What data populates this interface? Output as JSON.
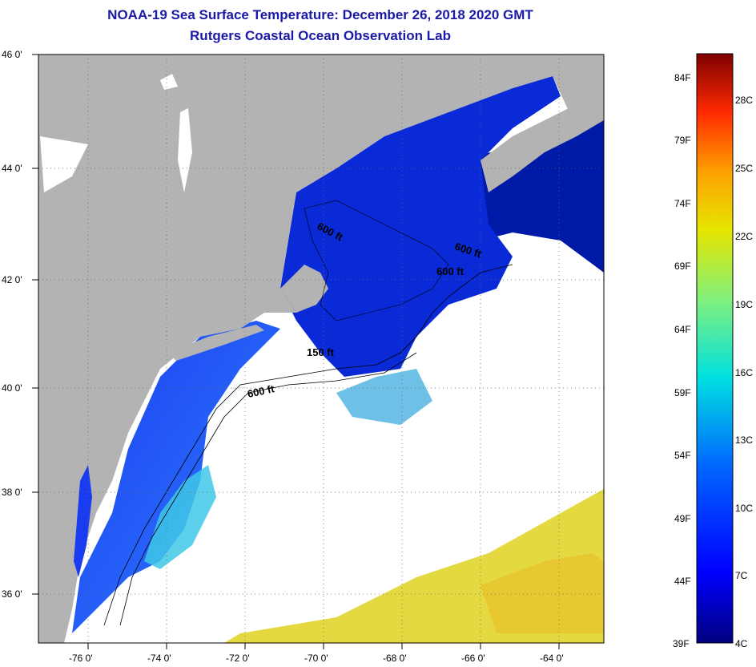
{
  "title": "NOAA-19 Sea Surface Temperature:  December 26, 2018 2020 GMT",
  "subtitle": "Rutgers Coastal Ocean Observation Lab",
  "lat_labels": [
    "46 0'",
    "44 0'",
    "42 0'",
    "40 0'",
    "38 0'",
    "36 0'"
  ],
  "lon_labels": [
    "-76 0'",
    "-74 0'",
    "-72 0'",
    "-70 0'",
    "-68 0'",
    "-66 0'",
    "-64 0'"
  ],
  "contour_labels": [
    "600 ft",
    "600 ft",
    "600 ft",
    "150 ft",
    "600 ft"
  ],
  "colorbar": {
    "fahrenheit": [
      "84F",
      "79F",
      "74F",
      "69F",
      "64F",
      "59F",
      "54F",
      "49F",
      "44F",
      "39F"
    ],
    "celsius": [
      "28C",
      "25C",
      "22C",
      "19C",
      "16C",
      "13C",
      "10C",
      "7C",
      "4C"
    ]
  },
  "colors": {
    "title": "#1a1aa6",
    "land": "#b3b3b3",
    "cloud": "#ffffff",
    "cold_water": "#001aa8",
    "cool_water": "#1f3fff",
    "warm_water": "#e8d82a"
  },
  "chart_data": {
    "type": "heatmap",
    "variable": "sea surface temperature",
    "lat_range": [
      35,
      46
    ],
    "lon_range": [
      -77,
      -63
    ],
    "temp_range_F": [
      39,
      86
    ],
    "temp_range_C": [
      4,
      30
    ]
  }
}
